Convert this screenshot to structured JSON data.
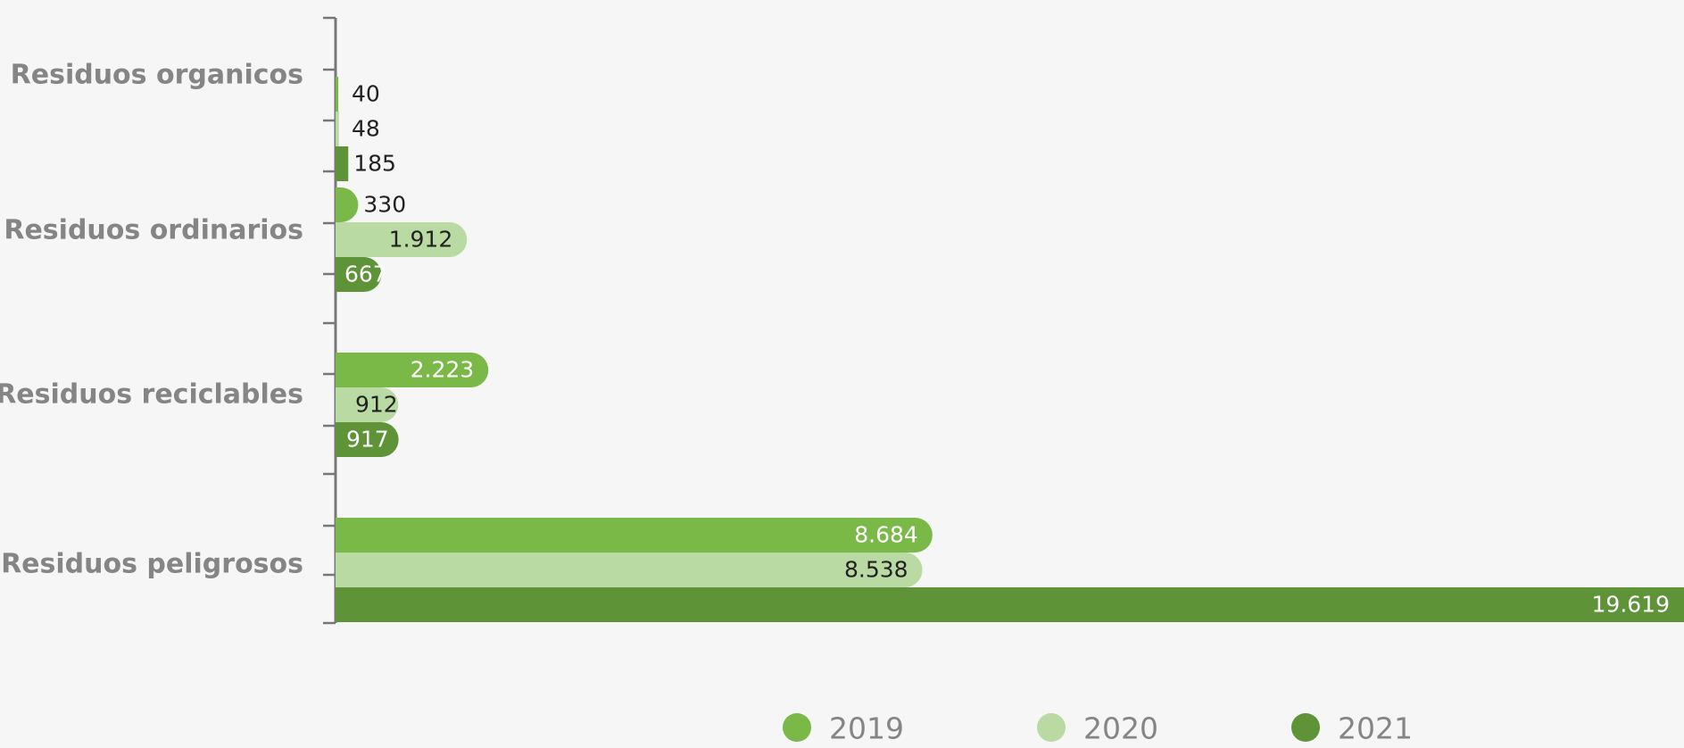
{
  "chart_data": {
    "type": "bar",
    "orientation": "horizontal",
    "categories": [
      "Residuos organicos",
      "Residuos ordinarios",
      "Residuos reciclables",
      "Residuos peligrosos"
    ],
    "series": [
      {
        "name": "2019",
        "values": [
          40,
          330,
          2223,
          8684
        ],
        "labels": [
          "40",
          "330",
          "2.223",
          "8.684"
        ],
        "color": "#7ab847"
      },
      {
        "name": "2020",
        "values": [
          48,
          1912,
          912,
          8538
        ],
        "labels": [
          "48",
          "1.912",
          "912",
          "8.538"
        ],
        "color": "#b9daa2"
      },
      {
        "name": "2021",
        "values": [
          185,
          667,
          917,
          19619
        ],
        "labels": [
          "185",
          "667",
          "917",
          "19.619"
        ],
        "color": "#5e9338"
      }
    ],
    "xlim": [
      0,
      19619
    ],
    "grid": false,
    "legend_position": "bottom-center"
  }
}
